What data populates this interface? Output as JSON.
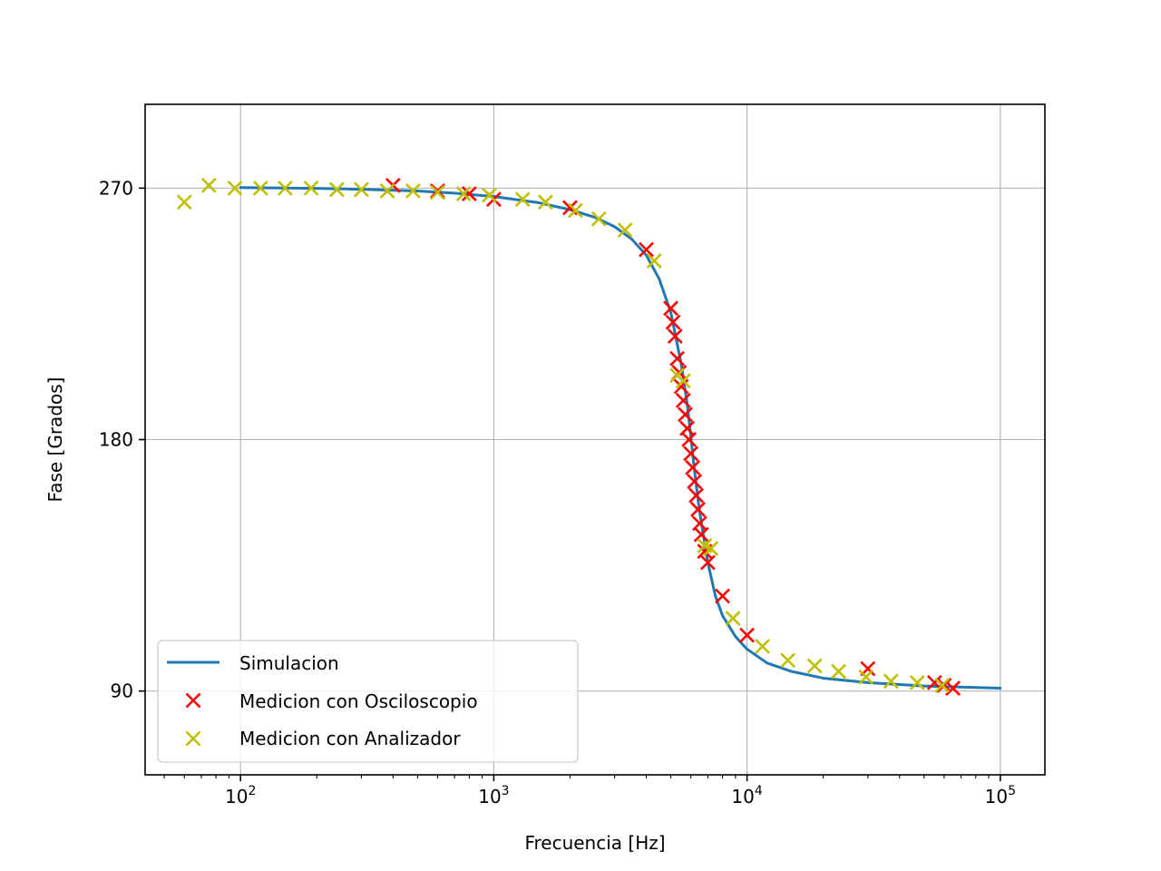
{
  "chart_data": {
    "type": "line",
    "xlabel": "Frecuencia [Hz]",
    "ylabel": "Fase [Grados]",
    "xscale": "log",
    "xlim": [
      42,
      150000
    ],
    "ylim": [
      60,
      300
    ],
    "x_ticks": [
      {
        "value": 100,
        "base": "10",
        "exp": "2"
      },
      {
        "value": 1000,
        "base": "10",
        "exp": "3"
      },
      {
        "value": 10000,
        "base": "10",
        "exp": "4"
      },
      {
        "value": 100000,
        "base": "10",
        "exp": "5"
      }
    ],
    "y_ticks": [
      {
        "value": 90,
        "label": "90"
      },
      {
        "value": 180,
        "label": "180"
      },
      {
        "value": 270,
        "label": "270"
      }
    ],
    "grid": true,
    "legend_position": "lower-left",
    "series": [
      {
        "name": "Simulacion",
        "kind": "line",
        "color": "#1f77b4",
        "points": [
          [
            100,
            270.2
          ],
          [
            200,
            269.9
          ],
          [
            300,
            269.6
          ],
          [
            500,
            269.0
          ],
          [
            700,
            268.2
          ],
          [
            1000,
            267.0
          ],
          [
            1500,
            264.8
          ],
          [
            2000,
            262.3
          ],
          [
            2500,
            259.6
          ],
          [
            3000,
            256.2
          ],
          [
            3500,
            251.8
          ],
          [
            4000,
            246.0
          ],
          [
            4500,
            237.5
          ],
          [
            5000,
            225.5
          ],
          [
            5500,
            207.0
          ],
          [
            5800,
            193.0
          ],
          [
            6000,
            181.0
          ],
          [
            6200,
            169.0
          ],
          [
            6500,
            154.0
          ],
          [
            7000,
            136.0
          ],
          [
            7500,
            124.0
          ],
          [
            8000,
            117.0
          ],
          [
            9000,
            109.5
          ],
          [
            10000,
            105.0
          ],
          [
            12000,
            100.0
          ],
          [
            15000,
            97.0
          ],
          [
            20000,
            94.6
          ],
          [
            30000,
            93.0
          ],
          [
            50000,
            91.8
          ],
          [
            100000,
            91.0
          ]
        ]
      },
      {
        "name": "Medicion con Osciloscopio",
        "kind": "scatter",
        "color": "#ff0000",
        "points": [
          [
            400,
            271
          ],
          [
            600,
            269
          ],
          [
            800,
            268
          ],
          [
            1000,
            266
          ],
          [
            2000,
            263
          ],
          [
            4000,
            248
          ],
          [
            5000,
            227
          ],
          [
            5100,
            222
          ],
          [
            5200,
            217
          ],
          [
            5300,
            209
          ],
          [
            5400,
            204
          ],
          [
            5500,
            199
          ],
          [
            5600,
            194
          ],
          [
            5700,
            189
          ],
          [
            5800,
            184
          ],
          [
            5900,
            180
          ],
          [
            6000,
            175
          ],
          [
            6100,
            170
          ],
          [
            6200,
            165
          ],
          [
            6300,
            160
          ],
          [
            6400,
            155
          ],
          [
            6500,
            150
          ],
          [
            6600,
            146
          ],
          [
            6800,
            140
          ],
          [
            7000,
            136
          ],
          [
            8000,
            124
          ],
          [
            10000,
            110
          ],
          [
            30000,
            98
          ],
          [
            55000,
            93
          ],
          [
            60000,
            92
          ],
          [
            65000,
            91
          ]
        ]
      },
      {
        "name": "Medicion con Analizador",
        "kind": "scatter",
        "color": "#bfbf00",
        "points": [
          [
            60,
            265
          ],
          [
            75,
            271
          ],
          [
            95,
            270
          ],
          [
            120,
            270
          ],
          [
            150,
            270
          ],
          [
            190,
            270
          ],
          [
            240,
            269.5
          ],
          [
            300,
            269.5
          ],
          [
            380,
            269
          ],
          [
            480,
            269
          ],
          [
            600,
            268.5
          ],
          [
            760,
            268
          ],
          [
            960,
            267.5
          ],
          [
            1300,
            266
          ],
          [
            1600,
            265
          ],
          [
            2100,
            262
          ],
          [
            2600,
            259
          ],
          [
            3300,
            255
          ],
          [
            4300,
            244
          ],
          [
            5300,
            203
          ],
          [
            5600,
            201
          ],
          [
            6800,
            142
          ],
          [
            7200,
            141
          ],
          [
            8800,
            116
          ],
          [
            11500,
            106
          ],
          [
            14500,
            101
          ],
          [
            18500,
            99
          ],
          [
            23000,
            97
          ],
          [
            29500,
            95
          ],
          [
            37000,
            93.5
          ],
          [
            47000,
            93
          ],
          [
            59000,
            92
          ]
        ]
      }
    ]
  }
}
